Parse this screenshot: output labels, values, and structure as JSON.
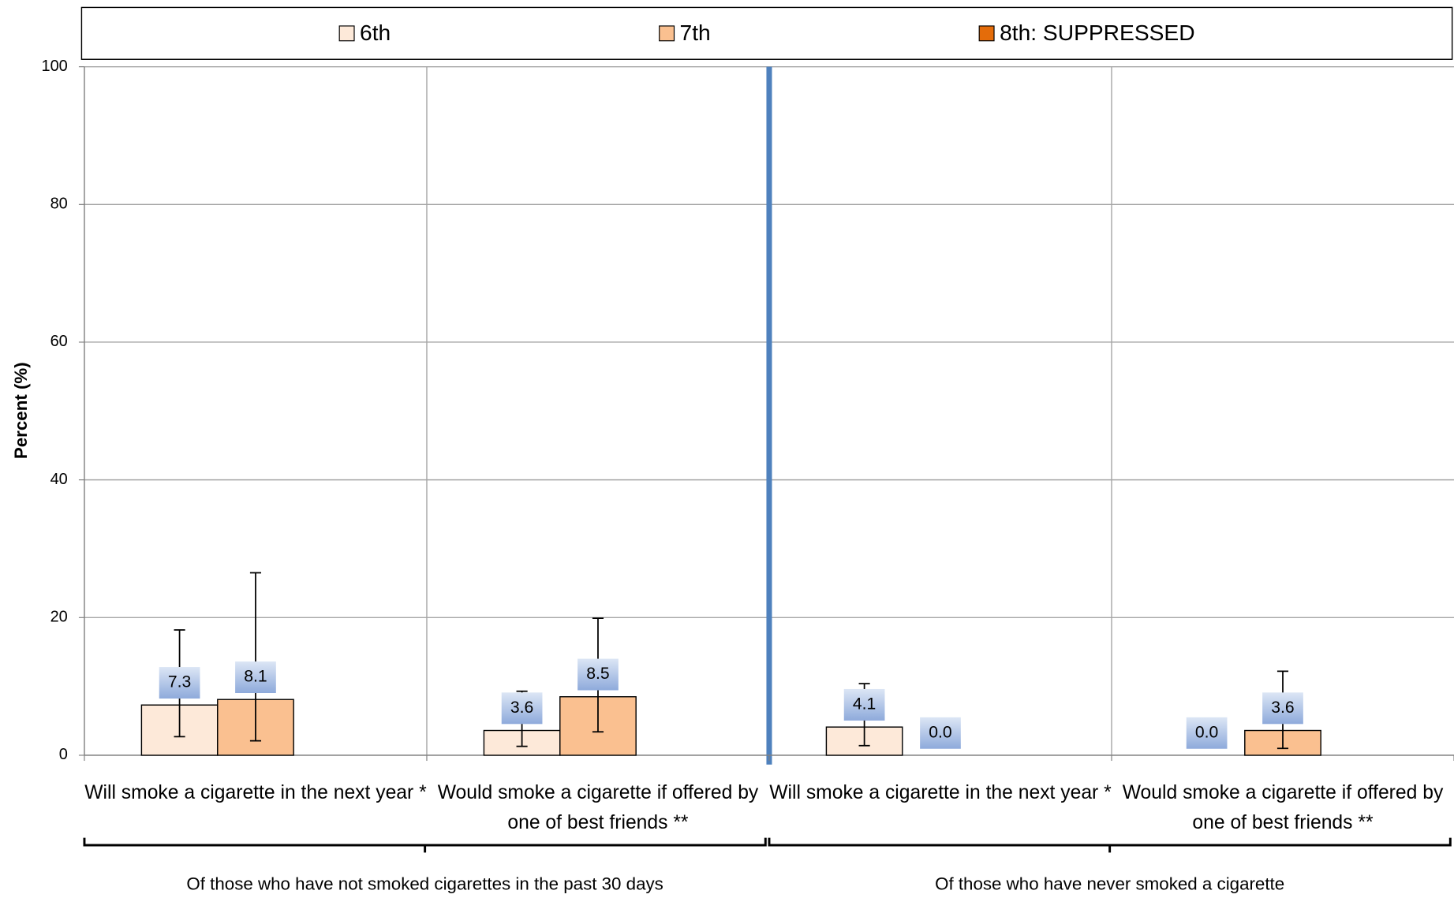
{
  "chart_data": {
    "type": "bar",
    "y_label": "Percent (%)",
    "categories": [
      "Will smoke a cigarette in the next year *",
      "Would smoke a cigarette if offered by one of best friends **",
      "Will smoke a cigarette in the next year *",
      "Would smoke a cigarette if offered by one of best friends **"
    ],
    "groups": [
      "Of those who have not smoked cigarettes in the past 30 days",
      "Of those who have never smoked a cigarette"
    ],
    "series": [
      {
        "name": "6th",
        "color": "#fde9d9",
        "values": [
          7.3,
          3.6,
          4.1,
          0.0
        ],
        "value_labels": [
          "7.3",
          "3.6",
          "4.1",
          "0.0"
        ],
        "ci_low": [
          2.7,
          1.3,
          1.4,
          null
        ],
        "ci_high": [
          18.2,
          9.3,
          10.4,
          null
        ]
      },
      {
        "name": "7th",
        "color": "#fac090",
        "values": [
          8.1,
          8.5,
          0.0,
          3.6
        ],
        "value_labels": [
          "8.1",
          "8.5",
          "0.0",
          "3.6"
        ],
        "ci_low": [
          2.1,
          3.4,
          null,
          1.0
        ],
        "ci_high": [
          26.5,
          19.9,
          null,
          12.2
        ]
      },
      {
        "name": "8th: SUPPRESSED",
        "color": "#e46c0a",
        "values": [
          null,
          null,
          null,
          null
        ]
      }
    ],
    "ylim": [
      0,
      100
    ],
    "yticks": [
      0,
      20,
      40,
      60,
      80,
      100
    ],
    "grid": true
  }
}
